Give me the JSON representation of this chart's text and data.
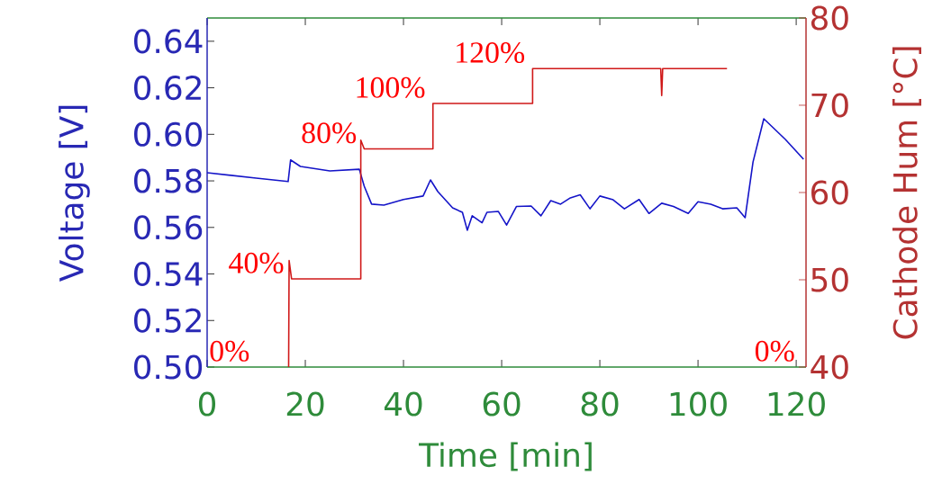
{
  "chart_data": {
    "type": "line",
    "xlabel": "Time [min]",
    "ylabel": "Voltage [V]",
    "y2label": "Cathode Hum [°C]",
    "xlim": [
      0,
      122
    ],
    "xticks": [
      0,
      20,
      40,
      60,
      80,
      100,
      120
    ],
    "ylim": [
      0.5,
      0.65
    ],
    "yticks": [
      {
        "value": 0.5,
        "label": "0.50"
      },
      0.52,
      0.54,
      0.56,
      0.58,
      {
        "value": 0.6,
        "label": "0.60"
      },
      0.62,
      0.64
    ],
    "y2lim": [
      40,
      80
    ],
    "y2ticks": [
      40,
      50,
      60,
      70,
      80
    ],
    "series": [
      {
        "color": "#1414c8",
        "x": [
          0,
          10,
          16.5,
          17,
          19,
          25,
          31,
          32,
          33.5,
          36,
          40,
          44,
          45.5,
          47,
          50,
          52,
          53,
          54,
          56,
          57,
          59.3,
          61,
          63,
          66,
          68,
          70,
          72,
          74,
          76,
          78,
          80,
          82.7,
          85,
          88,
          90,
          92.6,
          95,
          98,
          100,
          102.6,
          105,
          107.9,
          109.6,
          111.2,
          113.4,
          117.8,
          121.5
        ],
        "values": [
          0.5835,
          0.5812,
          0.5797,
          0.589,
          0.5862,
          0.5843,
          0.585,
          0.5777,
          0.57,
          0.5696,
          0.572,
          0.5735,
          0.5804,
          0.5754,
          0.5684,
          0.5665,
          0.5588,
          0.565,
          0.562,
          0.5665,
          0.5669,
          0.561,
          0.569,
          0.5692,
          0.565,
          0.5715,
          0.57,
          0.5727,
          0.574,
          0.568,
          0.5735,
          0.5719,
          0.568,
          0.572,
          0.566,
          0.5704,
          0.569,
          0.566,
          0.571,
          0.57,
          0.568,
          0.5684,
          0.5642,
          0.5881,
          0.6067,
          0.5978,
          0.5893
        ]
      },
      {
        "color": "#d01818",
        "axis": "y2",
        "x": [
          16.6,
          16.7,
          17.2,
          31.3,
          31.3,
          32,
          46,
          46,
          66.3,
          66.3,
          92.4,
          92.6,
          92.8,
          105.9
        ],
        "values": [
          40,
          52.2,
          50.1,
          50.1,
          66,
          65,
          65,
          70.2,
          70.2,
          74.2,
          74.2,
          71.1,
          74.2,
          74.2
        ]
      }
    ],
    "annotations": [
      "0%",
      "40%",
      "80%",
      "100%",
      "120%",
      "0%"
    ]
  }
}
